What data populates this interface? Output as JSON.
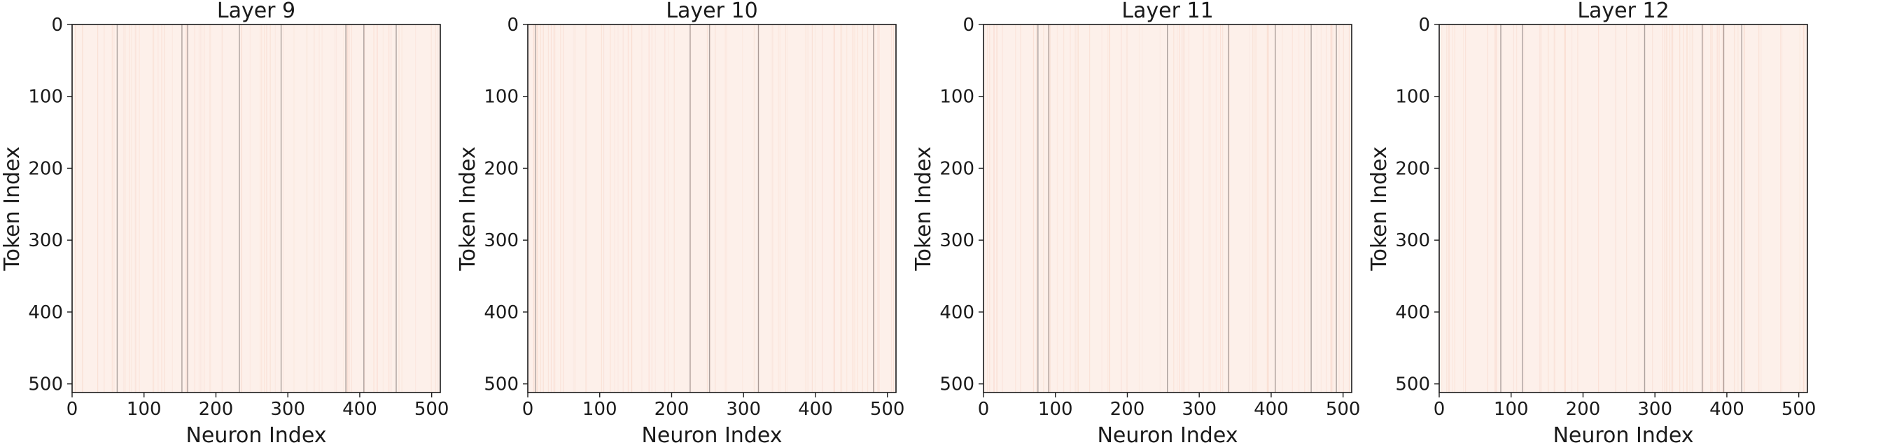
{
  "chart_data": [
    {
      "type": "heatmap",
      "title": "Layer 9",
      "xlabel": "Neuron Index",
      "ylabel": "Token Index",
      "xlim": [
        0,
        512
      ],
      "ylim": [
        512,
        0
      ],
      "xticks": [
        0,
        100,
        200,
        300,
        400,
        500
      ],
      "yticks": [
        0,
        100,
        200,
        300,
        400,
        500
      ],
      "dark_columns": [
        62,
        152,
        160,
        232,
        290,
        380,
        405,
        450
      ]
    },
    {
      "type": "heatmap",
      "title": "Layer 10",
      "xlabel": "Neuron Index",
      "ylabel": "Token Index",
      "xlim": [
        0,
        512
      ],
      "ylim": [
        512,
        0
      ],
      "xticks": [
        0,
        100,
        200,
        300,
        400,
        500
      ],
      "yticks": [
        0,
        100,
        200,
        300,
        400,
        500
      ],
      "dark_columns": [
        10,
        225,
        252,
        320,
        480
      ]
    },
    {
      "type": "heatmap",
      "title": "Layer 11",
      "xlabel": "Neuron Index",
      "ylabel": "Token Index",
      "xlim": [
        0,
        512
      ],
      "ylim": [
        512,
        0
      ],
      "xticks": [
        0,
        100,
        200,
        300,
        400,
        500
      ],
      "yticks": [
        0,
        100,
        200,
        300,
        400,
        500
      ],
      "dark_columns": [
        75,
        90,
        255,
        340,
        405,
        455,
        490
      ]
    },
    {
      "type": "heatmap",
      "title": "Layer 12",
      "xlabel": "Neuron Index",
      "ylabel": "Token Index",
      "xlim": [
        0,
        512
      ],
      "ylim": [
        512,
        0
      ],
      "xticks": [
        0,
        100,
        200,
        300,
        400,
        500
      ],
      "yticks": [
        0,
        100,
        200,
        300,
        400,
        500
      ],
      "dark_columns": [
        85,
        115,
        285,
        365,
        395,
        420
      ]
    }
  ],
  "colors": {
    "background": "#fdf0ea",
    "stripe": "#f9dcd0",
    "dark": "#4a4040",
    "axis": "#1a1a1a"
  }
}
